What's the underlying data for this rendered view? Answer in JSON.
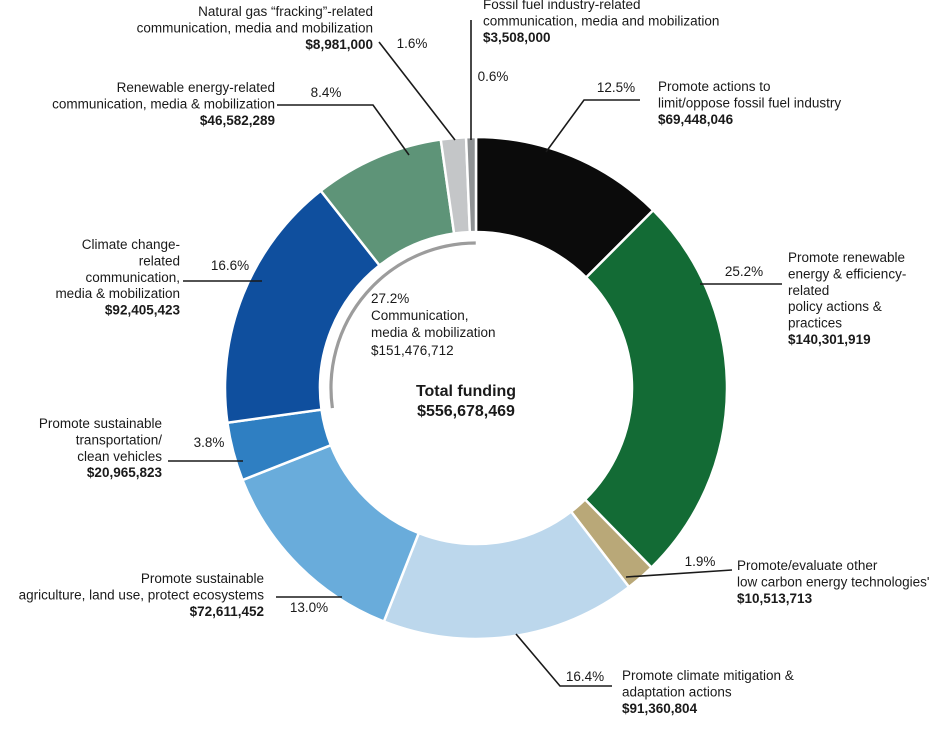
{
  "chart_data": {
    "type": "pie",
    "donut": true,
    "center": {
      "title": "Total funding",
      "total": "$556,678,469",
      "group_pct": "27.2%",
      "group_label": "Communication,",
      "group_label_2": "media & mobilization",
      "group_amount": "$151,476,712"
    },
    "slices": [
      {
        "key": "limit-fossil",
        "pct": "12.5%",
        "value": 69448046,
        "amount": "$69,448,046",
        "label": [
          "Promote actions to",
          "limit/oppose fossil fuel industry"
        ],
        "color": "#0b0b0b"
      },
      {
        "key": "renewable-policy",
        "pct": "25.2%",
        "value": 140301919,
        "amount": "$140,301,919",
        "label": [
          "Promote renewable",
          "energy & efficiency-",
          "related",
          "policy actions &",
          "practices"
        ],
        "color": "#136b35"
      },
      {
        "key": "low-carbon",
        "pct": "1.9%",
        "value": 10513713,
        "amount": "$10,513,713",
        "label": [
          "Promote/evaluate other",
          "low carbon energy technologies'"
        ],
        "color": "#b9a878"
      },
      {
        "key": "mitigation",
        "pct": "16.4%",
        "value": 91360804,
        "amount": "$91,360,804",
        "label": [
          "Promote climate mitigation &",
          "adaptation actions"
        ],
        "color": "#bcd7ec"
      },
      {
        "key": "agriculture",
        "pct": "13.0%",
        "value": 72611452,
        "amount": "$72,611,452",
        "label": [
          "Promote sustainable",
          "agriculture, land use, protect ecosystems"
        ],
        "color": "#69acdb"
      },
      {
        "key": "transport",
        "pct": "3.8%",
        "value": 20965823,
        "amount": "$20,965,823",
        "label": [
          "Promote sustainable",
          "transportation/",
          "clean vehicles"
        ],
        "color": "#2f7fc2"
      },
      {
        "key": "climate-comm",
        "pct": "16.6%",
        "value": 92405423,
        "amount": "$92,405,423",
        "label": [
          "Climate change-",
          "related",
          "communication,",
          "media & mobilization"
        ],
        "color": "#0f4f9e"
      },
      {
        "key": "renewable-comm",
        "pct": "8.4%",
        "value": 46582289,
        "amount": "$46,582,289",
        "label": [
          "Renewable energy-related",
          "communication, media & mobilization"
        ],
        "color": "#5e9478"
      },
      {
        "key": "fracking-comm",
        "pct": "1.6%",
        "value": 8981000,
        "amount": "$8,981,000",
        "label": [
          "Natural gas “fracking”-related",
          "communication, media and mobilization"
        ],
        "color": "#c4c6c8"
      },
      {
        "key": "fossil-comm",
        "pct": "0.6%",
        "value": 3508000,
        "amount": "$3,508,000",
        "label": [
          "Fossil fuel industry-related",
          "communication, media and mobilization"
        ],
        "color": "#8f9294"
      }
    ]
  }
}
